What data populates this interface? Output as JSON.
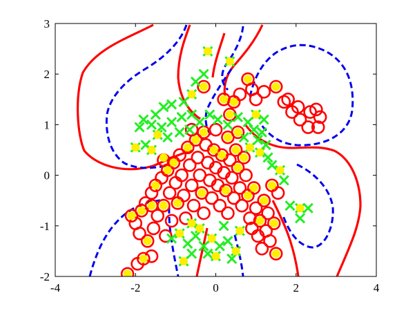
{
  "chart_data": {
    "type": "scatter",
    "title": "",
    "xlabel": "",
    "ylabel": "",
    "xlim": [
      -4,
      4
    ],
    "ylim": [
      -2,
      3
    ],
    "grid": false,
    "x_ticks": [
      "-4",
      "-2",
      "0",
      "2",
      "4"
    ],
    "y_ticks": [
      "-2",
      "-1",
      "0",
      "1",
      "2",
      "3"
    ],
    "colors": {
      "circles": "#ff0000",
      "crosses": "#22ee22",
      "support_vectors": "#ffee00",
      "solid_contour": "#ff0000",
      "dashed_contour": "#0000ee"
    },
    "series": [
      {
        "marker": "circle",
        "values": [
          [
            -2.2,
            -1.95
          ],
          [
            -1.95,
            -1.75
          ],
          [
            -1.8,
            -1.65
          ],
          [
            -1.6,
            -1.6
          ],
          [
            -2.1,
            -0.8
          ],
          [
            -2.0,
            -0.95
          ],
          [
            -1.9,
            -1.15
          ],
          [
            -1.85,
            -0.7
          ],
          [
            -1.75,
            -0.55
          ],
          [
            -1.7,
            -1.3
          ],
          [
            -1.6,
            -0.35
          ],
          [
            -1.55,
            -1.05
          ],
          [
            -1.5,
            -0.2
          ],
          [
            -1.45,
            -0.8
          ],
          [
            -1.35,
            -0.05
          ],
          [
            -1.3,
            -0.6
          ],
          [
            -1.25,
            -1.2
          ],
          [
            -1.2,
            0.1
          ],
          [
            -1.15,
            -0.35
          ],
          [
            -1.1,
            -0.9
          ],
          [
            -1.05,
            0.25
          ],
          [
            -1.0,
            -0.15
          ],
          [
            -0.95,
            -0.55
          ],
          [
            -0.9,
            0.4
          ],
          [
            -0.85,
            0.0
          ],
          [
            -0.8,
            -0.4
          ],
          [
            -0.75,
            -0.85
          ],
          [
            -0.7,
            0.55
          ],
          [
            -0.65,
            0.2
          ],
          [
            -0.6,
            -0.2
          ],
          [
            -0.55,
            -0.6
          ],
          [
            -0.5,
            0.7
          ],
          [
            -0.45,
            0.35
          ],
          [
            -0.4,
            0.0
          ],
          [
            -0.35,
            -0.35
          ],
          [
            -0.3,
            -0.75
          ],
          [
            -0.25,
            0.6
          ],
          [
            -0.2,
            0.25
          ],
          [
            -0.15,
            -0.1
          ],
          [
            -0.1,
            -0.45
          ],
          [
            -0.05,
            0.5
          ],
          [
            0.0,
            0.15
          ],
          [
            0.05,
            -0.2
          ],
          [
            0.1,
            -0.6
          ],
          [
            0.15,
            0.4
          ],
          [
            0.2,
            0.05
          ],
          [
            0.25,
            -0.3
          ],
          [
            0.3,
            -0.75
          ],
          [
            0.35,
            0.3
          ],
          [
            0.4,
            -0.05
          ],
          [
            0.45,
            -0.45
          ],
          [
            0.5,
            0.5
          ],
          [
            0.55,
            0.15
          ],
          [
            0.6,
            -0.25
          ],
          [
            0.65,
            -0.6
          ],
          [
            0.7,
            0.35
          ],
          [
            0.75,
            0.0
          ],
          [
            0.8,
            -0.4
          ],
          [
            0.85,
            -0.85
          ],
          [
            0.9,
            -1.05
          ],
          [
            0.95,
            -0.25
          ],
          [
            1.0,
            -0.65
          ],
          [
            1.05,
            -1.2
          ],
          [
            1.1,
            -0.9
          ],
          [
            1.15,
            -1.45
          ],
          [
            1.2,
            -0.5
          ],
          [
            1.25,
            -1.1
          ],
          [
            1.3,
            -0.75
          ],
          [
            1.35,
            -1.3
          ],
          [
            1.4,
            -0.2
          ],
          [
            1.45,
            -0.95
          ],
          [
            1.5,
            -1.55
          ],
          [
            1.55,
            -0.35
          ],
          [
            -0.3,
            0.85
          ],
          [
            0.0,
            0.9
          ],
          [
            0.3,
            0.75
          ],
          [
            -0.6,
            0.9
          ],
          [
            0.55,
            0.85
          ],
          [
            -1.3,
            0.3
          ],
          [
            -1.6,
            -0.6
          ],
          [
            1.5,
            1.75
          ],
          [
            1.7,
            1.45
          ],
          [
            1.9,
            1.25
          ],
          [
            2.1,
            1.1
          ],
          [
            2.3,
            0.95
          ],
          [
            2.55,
            0.95
          ],
          [
            2.6,
            1.15
          ],
          [
            2.5,
            1.3
          ],
          [
            2.35,
            1.25
          ],
          [
            2.05,
            1.35
          ],
          [
            1.8,
            1.5
          ],
          [
            1.2,
            1.65
          ],
          [
            0.9,
            1.7
          ],
          [
            0.6,
            1.6
          ],
          [
            0.8,
            1.9
          ],
          [
            1.0,
            1.5
          ],
          [
            0.45,
            1.45
          ],
          [
            0.2,
            1.5
          ],
          [
            -0.3,
            1.75
          ],
          [
            0.35,
            1.2
          ]
        ]
      },
      {
        "marker": "cross",
        "values": [
          [
            -0.2,
            2.45
          ],
          [
            0.35,
            2.25
          ],
          [
            -0.3,
            2.0
          ],
          [
            -0.5,
            1.85
          ],
          [
            -0.6,
            1.6
          ],
          [
            -0.8,
            1.45
          ],
          [
            -1.1,
            1.4
          ],
          [
            -1.3,
            1.35
          ],
          [
            -1.5,
            1.2
          ],
          [
            -1.8,
            1.1
          ],
          [
            -1.9,
            0.95
          ],
          [
            -1.6,
            1.0
          ],
          [
            -1.35,
            0.95
          ],
          [
            -1.1,
            1.05
          ],
          [
            -0.85,
            1.15
          ],
          [
            -0.6,
            1.2
          ],
          [
            -0.4,
            1.05
          ],
          [
            -0.15,
            1.2
          ],
          [
            -0.9,
            0.85
          ],
          [
            -0.65,
            0.9
          ],
          [
            -1.2,
            0.75
          ],
          [
            -1.45,
            0.8
          ],
          [
            -1.75,
            0.6
          ],
          [
            -1.6,
            0.5
          ],
          [
            -2.0,
            0.55
          ],
          [
            0.05,
            1.1
          ],
          [
            0.3,
            1.0
          ],
          [
            0.55,
            1.15
          ],
          [
            0.8,
            1.05
          ],
          [
            1.0,
            1.2
          ],
          [
            1.2,
            1.1
          ],
          [
            0.95,
            0.9
          ],
          [
            1.15,
            0.85
          ],
          [
            1.05,
            0.7
          ],
          [
            1.25,
            0.6
          ],
          [
            1.1,
            0.45
          ],
          [
            0.85,
            0.55
          ],
          [
            1.3,
            0.35
          ],
          [
            1.4,
            0.2
          ],
          [
            0.7,
            0.75
          ],
          [
            1.6,
            0.1
          ],
          [
            1.7,
            -0.1
          ],
          [
            2.1,
            -0.65
          ],
          [
            2.3,
            -0.65
          ],
          [
            1.85,
            -0.6
          ],
          [
            2.1,
            -0.85
          ],
          [
            -0.9,
            -1.15
          ],
          [
            -1.1,
            -1.25
          ],
          [
            -0.7,
            -1.35
          ],
          [
            -0.5,
            -1.2
          ],
          [
            -0.3,
            -1.4
          ],
          [
            -0.1,
            -1.25
          ],
          [
            0.1,
            -1.4
          ],
          [
            0.3,
            -1.3
          ],
          [
            0.5,
            -1.5
          ],
          [
            -0.2,
            -1.55
          ],
          [
            0.0,
            -1.6
          ],
          [
            -0.6,
            -1.55
          ],
          [
            0.4,
            -1.65
          ],
          [
            -0.8,
            -1.7
          ],
          [
            -0.4,
            -1.05
          ],
          [
            0.2,
            -1.0
          ],
          [
            0.6,
            -1.1
          ],
          [
            -0.6,
            -0.95
          ]
        ]
      },
      {
        "marker": "support_vector",
        "values": [
          [
            -2.2,
            -1.95
          ],
          [
            -1.8,
            -1.65
          ],
          [
            -2.1,
            -0.8
          ],
          [
            -1.85,
            -0.7
          ],
          [
            -1.7,
            -1.3
          ],
          [
            -1.5,
            -0.2
          ],
          [
            -1.3,
            -0.6
          ],
          [
            -1.2,
            0.1
          ],
          [
            -1.05,
            0.25
          ],
          [
            -0.95,
            -0.55
          ],
          [
            -0.7,
            0.55
          ],
          [
            -0.5,
            0.7
          ],
          [
            -0.35,
            -0.35
          ],
          [
            -0.05,
            0.5
          ],
          [
            0.15,
            0.4
          ],
          [
            0.25,
            -0.3
          ],
          [
            0.5,
            0.5
          ],
          [
            0.55,
            0.15
          ],
          [
            0.7,
            0.35
          ],
          [
            0.8,
            -0.4
          ],
          [
            0.95,
            -0.25
          ],
          [
            1.1,
            -0.9
          ],
          [
            1.2,
            -0.5
          ],
          [
            1.4,
            -0.2
          ],
          [
            1.45,
            -0.95
          ],
          [
            1.5,
            -1.55
          ],
          [
            -0.3,
            0.85
          ],
          [
            0.3,
            0.75
          ],
          [
            0.55,
            0.85
          ],
          [
            -1.6,
            -0.6
          ],
          [
            1.5,
            1.75
          ],
          [
            0.8,
            1.9
          ],
          [
            0.45,
            1.45
          ],
          [
            0.2,
            1.5
          ],
          [
            -0.3,
            1.75
          ],
          [
            0.35,
            1.2
          ],
          [
            -1.3,
            0.35
          ],
          [
            -1.6,
            0.5
          ],
          [
            0.85,
            0.55
          ],
          [
            1.1,
            0.45
          ],
          [
            -0.2,
            2.45
          ],
          [
            0.35,
            2.25
          ],
          [
            -0.6,
            1.6
          ],
          [
            1.6,
            0.1
          ],
          [
            2.1,
            -0.65
          ],
          [
            -0.9,
            -1.15
          ],
          [
            -0.1,
            -1.25
          ],
          [
            0.5,
            -1.5
          ],
          [
            -0.6,
            -0.95
          ],
          [
            0.6,
            -1.1
          ],
          [
            -0.4,
            -1.05
          ],
          [
            1.0,
            1.2
          ],
          [
            -1.45,
            0.8
          ],
          [
            -2.0,
            0.55
          ],
          [
            0.0,
            -1.6
          ],
          [
            -0.8,
            -1.7
          ]
        ]
      }
    ]
  }
}
